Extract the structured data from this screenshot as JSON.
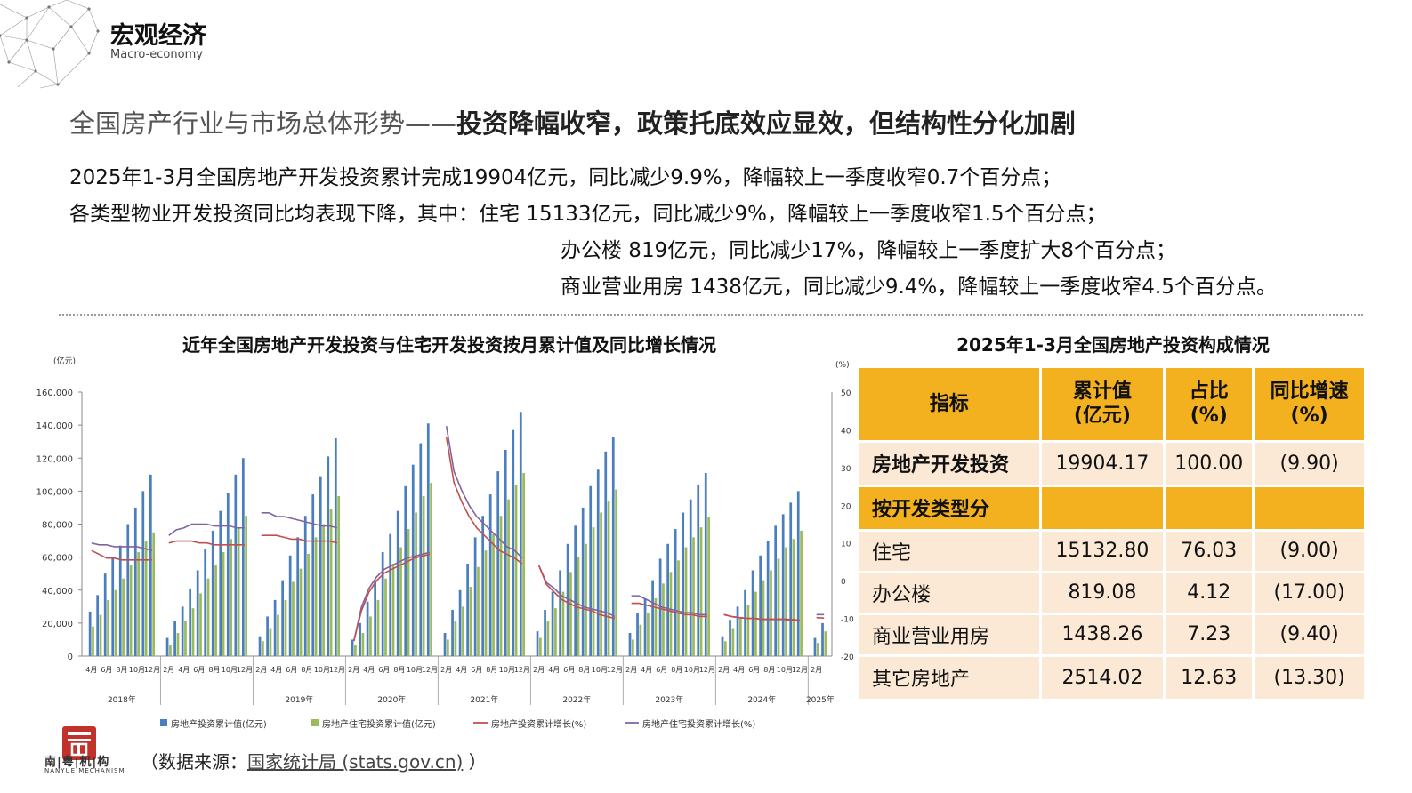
{
  "brand": {
    "title": "宏观经济",
    "subtitle": "Macro-economy"
  },
  "headline": {
    "lead": "全国房产行业与市场总体形势",
    "dash": "——",
    "emphasis": "投资降幅收窄，政策托底效应显效，但结构性分化加剧"
  },
  "summary": [
    "2025年1-3月全国房地产开发投资累计完成19904亿元，同比减少9.9%，降幅较上一季度收窄0.7个百分点；",
    "各类型物业开发投资同比均表现下降，其中：住宅 15133亿元，同比减少9%，降幅较上一季度收窄1.5个百分点；",
    "办公楼 819亿元，同比减少17%，降幅较上一季度扩大8个百分点；",
    "商业营业用房 1438亿元，同比减少9.4%，降幅较上一季度收窄4.5个百分点。"
  ],
  "chart_data": {
    "type": "bar+line",
    "title": "近年全国房地产开发投资与住宅开发投资按月累计值及同比增长情况",
    "y_left_unit": "(亿元)",
    "y_right_unit": "(%)",
    "y_left_range": [
      0,
      160000
    ],
    "y_right_range": [
      -20,
      50
    ],
    "y_left_ticks": [
      "0",
      "20,000",
      "40,000",
      "60,000",
      "80,000",
      "100,000",
      "120,000",
      "140,000",
      "160,000"
    ],
    "y_right_ticks": [
      "-20",
      "-10",
      "0",
      "10",
      "20",
      "30",
      "40",
      "50"
    ],
    "colors": {
      "investment": "#4a7ebf",
      "residential": "#9bbb59",
      "investment_growth": "#c0504d",
      "residential_growth": "#8064a2"
    },
    "legend": [
      "房地产投资累计值(亿元)",
      "房地产住宅投资累计值(亿元)",
      "房地产投资累计增长(%)",
      "房地产住宅投资累计增长(%)"
    ],
    "years": [
      {
        "label": "2018年",
        "month_labels": [
          "4月",
          "6月",
          "8月",
          "10月",
          "12月"
        ],
        "investment": [
          27000,
          37000,
          50000,
          59000,
          67000,
          80000,
          90000,
          100000,
          110000
        ],
        "residential": [
          18000,
          25000,
          34000,
          40000,
          47000,
          55000,
          63000,
          70000,
          75000
        ],
        "investment_growth": [
          8,
          7,
          6,
          6,
          5.5,
          5.5,
          5.5,
          5.5,
          5.5
        ],
        "residential_growth": [
          10,
          9.5,
          9.5,
          9,
          9,
          9,
          9,
          8.5,
          8
        ]
      },
      {
        "label": "",
        "month_labels": [
          "2月",
          "4月",
          "6月",
          "8月",
          "10月",
          "12月"
        ],
        "investment": [
          11000,
          21000,
          30000,
          41000,
          52000,
          65000,
          76000,
          88000,
          99000,
          110000,
          120000
        ],
        "residential": [
          7000,
          14000,
          21000,
          29000,
          38000,
          47000,
          55000,
          63000,
          71000,
          78000,
          85000
        ],
        "investment_growth": [
          10,
          10.5,
          10.5,
          10.5,
          10,
          10,
          9.5,
          9.5,
          9.5,
          9.5,
          9.5
        ],
        "residential_growth": [
          12,
          13.5,
          14,
          15,
          15,
          15,
          14.5,
          14.5,
          14.5,
          14,
          14
        ]
      },
      {
        "label": "2019年",
        "month_labels": [
          "2月",
          "4月",
          "6月",
          "8月",
          "10月",
          "12月"
        ],
        "investment": [
          12000,
          24000,
          34000,
          46000,
          61000,
          72000,
          85000,
          98000,
          109000,
          121000,
          132000
        ],
        "residential": [
          9000,
          17000,
          25000,
          34000,
          45000,
          53000,
          62000,
          72000,
          80000,
          89000,
          97000
        ],
        "investment_growth": [
          12,
          12,
          12,
          11.5,
          11,
          11,
          10.5,
          10.5,
          10.5,
          10.5,
          10
        ],
        "residential_growth": [
          18,
          18,
          17,
          17,
          16.5,
          16,
          15.5,
          15,
          14.5,
          14.5,
          14
        ]
      },
      {
        "label": "2020年",
        "month_labels": [
          "2月",
          "4月",
          "6月",
          "8月",
          "10月",
          "12月"
        ],
        "investment": [
          10000,
          20000,
          33000,
          46000,
          63000,
          74000,
          88000,
          103000,
          116000,
          129000,
          141000
        ],
        "residential": [
          7000,
          14000,
          24000,
          34000,
          47000,
          56000,
          66000,
          77000,
          87000,
          97000,
          105000
        ],
        "investment_growth": [
          -16,
          -8,
          -3,
          0,
          2,
          3,
          4,
          5,
          6,
          6.5,
          7
        ],
        "residential_growth": [
          -16,
          -7,
          -2,
          1,
          3,
          4,
          5,
          6,
          6.5,
          7,
          7.5
        ]
      },
      {
        "label": "2021年",
        "month_labels": [
          "2月",
          "4月",
          "6月",
          "8月",
          "10月",
          "12月"
        ],
        "investment": [
          14000,
          28000,
          40000,
          56000,
          72000,
          85000,
          98000,
          112000,
          125000,
          137000,
          148000
        ],
        "residential": [
          10000,
          21000,
          30000,
          42000,
          54000,
          64000,
          74000,
          85000,
          95000,
          104000,
          111000
        ],
        "investment_growth": [
          38,
          26,
          21,
          17,
          14,
          12,
          10,
          8,
          7,
          6,
          4.5
        ],
        "residential_growth": [
          41,
          29,
          24,
          20,
          17,
          15,
          13,
          11,
          9,
          8,
          6
        ]
      },
      {
        "label": "2022年",
        "month_labels": [
          "2月",
          "4月",
          "6月",
          "8月",
          "10月",
          "12月"
        ],
        "investment": [
          15000,
          28000,
          39000,
          52000,
          68000,
          79000,
          90000,
          103000,
          113000,
          124000,
          133000
        ],
        "residential": [
          11000,
          21000,
          29000,
          39000,
          51000,
          60000,
          68000,
          78000,
          87000,
          94000,
          101000
        ],
        "investment_growth": [
          4,
          -1,
          -3,
          -5,
          -6,
          -7,
          -7.5,
          -8,
          -9,
          -9.5,
          -10
        ],
        "residential_growth": [
          4,
          -0.5,
          -2,
          -4,
          -5,
          -6,
          -7,
          -7.5,
          -8,
          -8.5,
          -9.5
        ]
      },
      {
        "label": "2023年",
        "month_labels": [
          "2月",
          "4月",
          "6月",
          "8月",
          "10月",
          "12月"
        ],
        "investment": [
          14000,
          26000,
          35000,
          46000,
          59000,
          68000,
          77000,
          87000,
          95000,
          104000,
          111000
        ],
        "residential": [
          10000,
          19000,
          26000,
          35000,
          44000,
          51000,
          58000,
          66000,
          72000,
          78000,
          84000
        ],
        "investment_growth": [
          -6,
          -6,
          -6.5,
          -7,
          -7.5,
          -8,
          -8.5,
          -9,
          -9,
          -9.5,
          -9.5
        ],
        "residential_growth": [
          -4,
          -4,
          -5,
          -6,
          -7,
          -7.5,
          -8,
          -8.5,
          -8.5,
          -9,
          -9
        ]
      },
      {
        "label": "2024年",
        "month_labels": [
          "2月",
          "4月",
          "6月",
          "8月",
          "10月",
          "12月"
        ],
        "investment": [
          12000,
          22000,
          30000,
          40000,
          52000,
          61000,
          70000,
          79000,
          86000,
          93000,
          100000
        ],
        "residential": [
          9000,
          17000,
          23000,
          31000,
          39000,
          46000,
          52000,
          59000,
          66000,
          71000,
          76000
        ],
        "investment_growth": [
          -9,
          -9.5,
          -9.8,
          -10,
          -10,
          -10.2,
          -10.2,
          -10.2,
          -10.2,
          -10.3,
          -10.5
        ],
        "residential_growth": [
          -9,
          -9.5,
          -9.8,
          -10,
          -10,
          -10.3,
          -10.3,
          -10.3,
          -10.3,
          -10.5,
          -10.5
        ]
      },
      {
        "label": "2025年",
        "month_labels": [
          "2月"
        ],
        "investment": [
          11000,
          20000
        ],
        "residential": [
          8000,
          15000
        ],
        "investment_growth": [
          -9.8,
          -9.9
        ],
        "residential_growth": [
          -9,
          -9
        ]
      }
    ]
  },
  "table": {
    "title": "2025年1-3月全国房地产投资构成情况",
    "headers": [
      "指标",
      "累计值\n(亿元)",
      "占比\n(%)",
      "同比增速\n(%)"
    ],
    "header_lines": [
      [
        "指标"
      ],
      [
        "累计值",
        "(亿元)"
      ],
      [
        "占比",
        "(%)"
      ],
      [
        "同比增速",
        "(%)"
      ]
    ],
    "rows": [
      {
        "name": "房地产开发投资",
        "value": "19904.17",
        "share": "100.00",
        "growth": "(9.90)"
      },
      {
        "name": "按开发类型分",
        "value": "",
        "share": "",
        "growth": ""
      },
      {
        "name": "住宅",
        "value": "15132.80",
        "share": "76.03",
        "growth": "(9.00)"
      },
      {
        "name": "办公楼",
        "value": "819.08",
        "share": "4.12",
        "growth": "(17.00)"
      },
      {
        "name": "商业营业用房",
        "value": "1438.26",
        "share": "7.23",
        "growth": "(9.40)"
      },
      {
        "name": "其它房地产",
        "value": "2514.02",
        "share": "12.63",
        "growth": "(13.30)"
      }
    ]
  },
  "footer": {
    "logo_cn": "南|粤|机|构",
    "logo_en": "NANYUE MECHANISM",
    "source_prefix": "（数据来源：",
    "source_link": "国家统计局 (stats.gov.cn)",
    "source_suffix": " ）"
  }
}
